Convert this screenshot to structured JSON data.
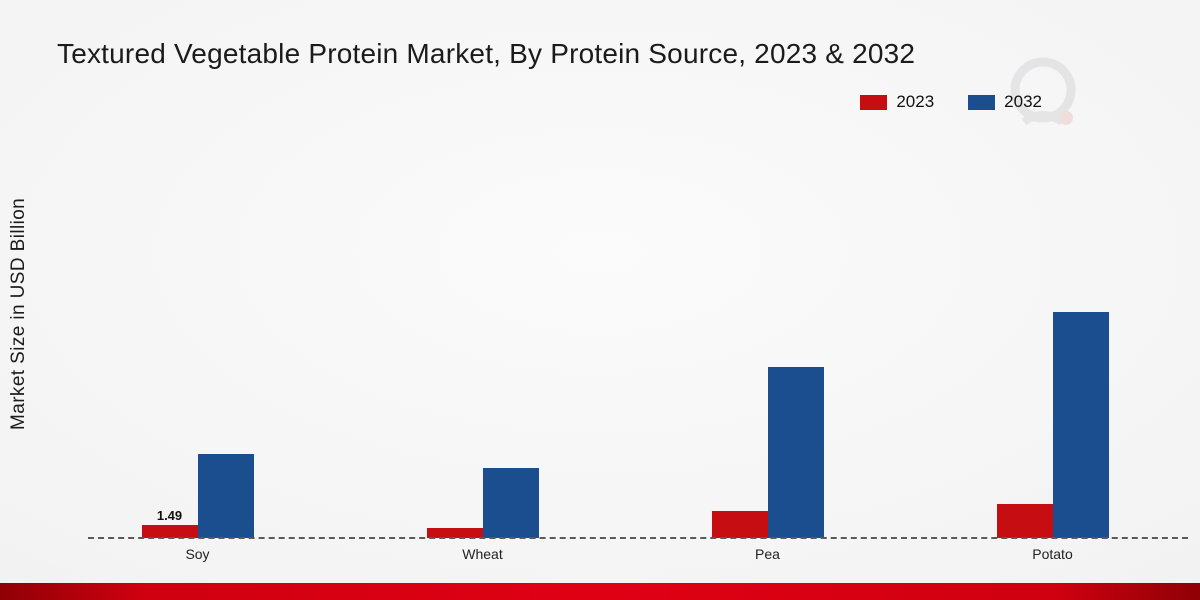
{
  "chart_data": {
    "type": "bar",
    "title": "Textured Vegetable Protein Market, By Protein Source, 2023 & 2032",
    "ylabel": "Market Size in USD Billion",
    "xlabel": "",
    "categories": [
      "Soy",
      "Wheat",
      "Pea",
      "Potato"
    ],
    "series": [
      {
        "name": "2023",
        "color": "#c50d12",
        "values": [
          1.49,
          1.15,
          3.1,
          3.9
        ],
        "value_labels": [
          "1.49",
          "",
          "",
          ""
        ]
      },
      {
        "name": "2032",
        "color": "#1a4e8e",
        "values": [
          9.7,
          8.0,
          19.7,
          26.0
        ],
        "value_labels": [
          "",
          "",
          "",
          ""
        ]
      }
    ],
    "ylim": [
      0,
      30
    ],
    "grid": false,
    "baseline_style": "dashed",
    "legend_position": "top-right"
  },
  "decor": {
    "footer_bar_color": "#cf0010",
    "background_color": "#efefef"
  }
}
